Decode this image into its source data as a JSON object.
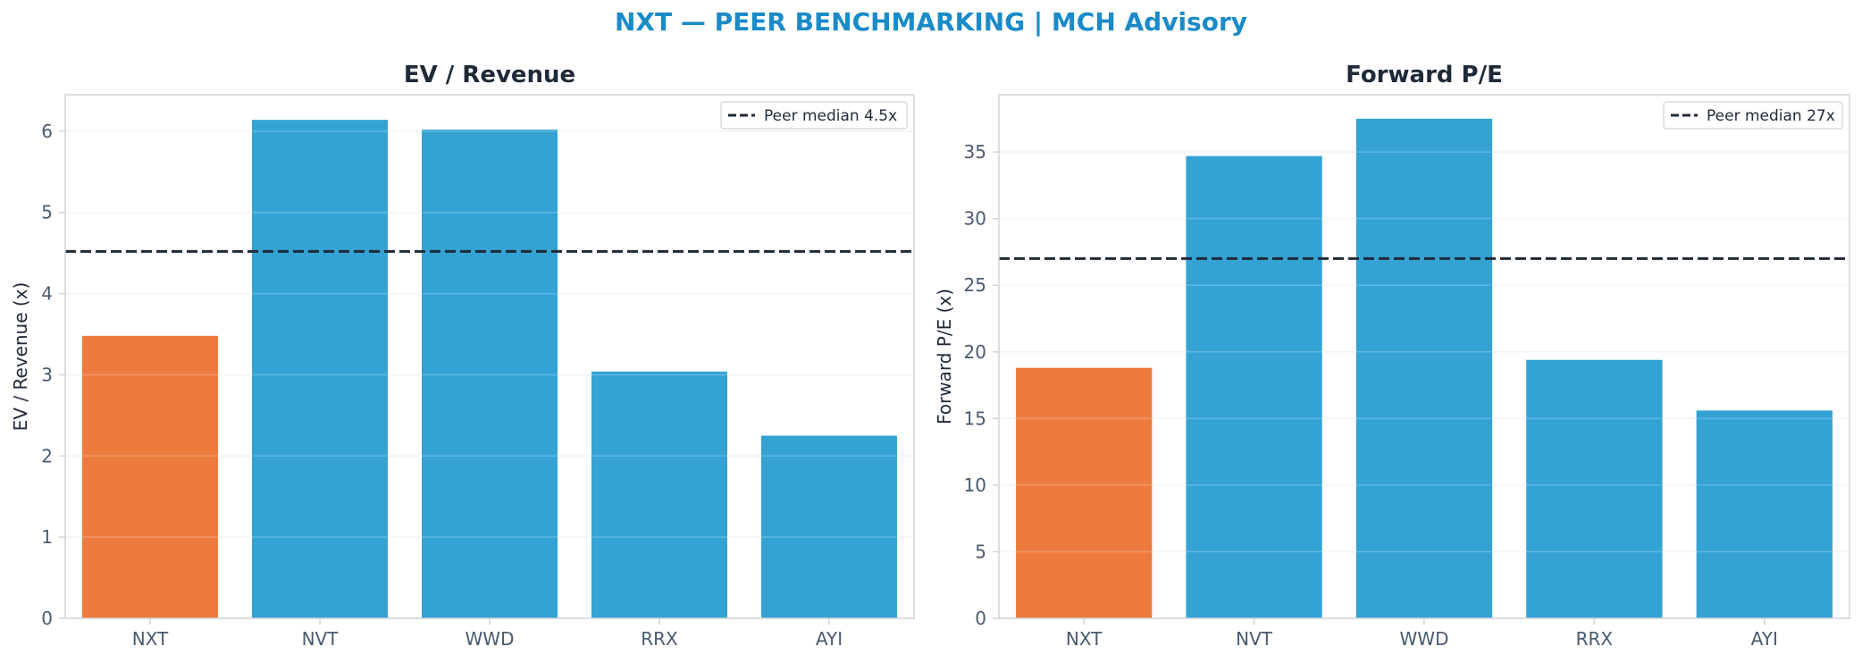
{
  "figure": {
    "title": "NXT — PEER BENCHMARKING | MCH Advisory",
    "title_color": "#1a8bc8"
  },
  "colors": {
    "highlight": "#ed7b3e",
    "peer": "#34a3d4",
    "median_line": "#1f2a38",
    "axis": "#d0d4da",
    "grid": "#eef0f3"
  },
  "chart_data": [
    {
      "type": "bar",
      "title": "EV / Revenue",
      "xlabel": "",
      "ylabel": "EV / Revenue (x)",
      "categories": [
        "NXT",
        "NVT",
        "WWD",
        "RRX",
        "AYI"
      ],
      "values": [
        3.48,
        6.14,
        6.02,
        3.04,
        2.25
      ],
      "highlight": "NXT",
      "ylim": [
        0,
        6.45
      ],
      "yticks": [
        0,
        1,
        2,
        3,
        4,
        5,
        6
      ],
      "reference_line": {
        "value": 4.52,
        "label": "Peer median 4.5x",
        "style": "dashed"
      },
      "legend": "top-right",
      "grid": true
    },
    {
      "type": "bar",
      "title": "Forward P/E",
      "xlabel": "",
      "ylabel": "Forward P/E (x)",
      "categories": [
        "NXT",
        "NVT",
        "WWD",
        "RRX",
        "AYI"
      ],
      "values": [
        18.8,
        34.7,
        37.5,
        19.4,
        15.6
      ],
      "highlight": "NXT",
      "ylim": [
        0,
        39.3
      ],
      "yticks": [
        0,
        5,
        10,
        15,
        20,
        25,
        30,
        35
      ],
      "reference_line": {
        "value": 27.0,
        "label": "Peer median 27x",
        "style": "dashed"
      },
      "legend": "top-right",
      "grid": true
    }
  ]
}
